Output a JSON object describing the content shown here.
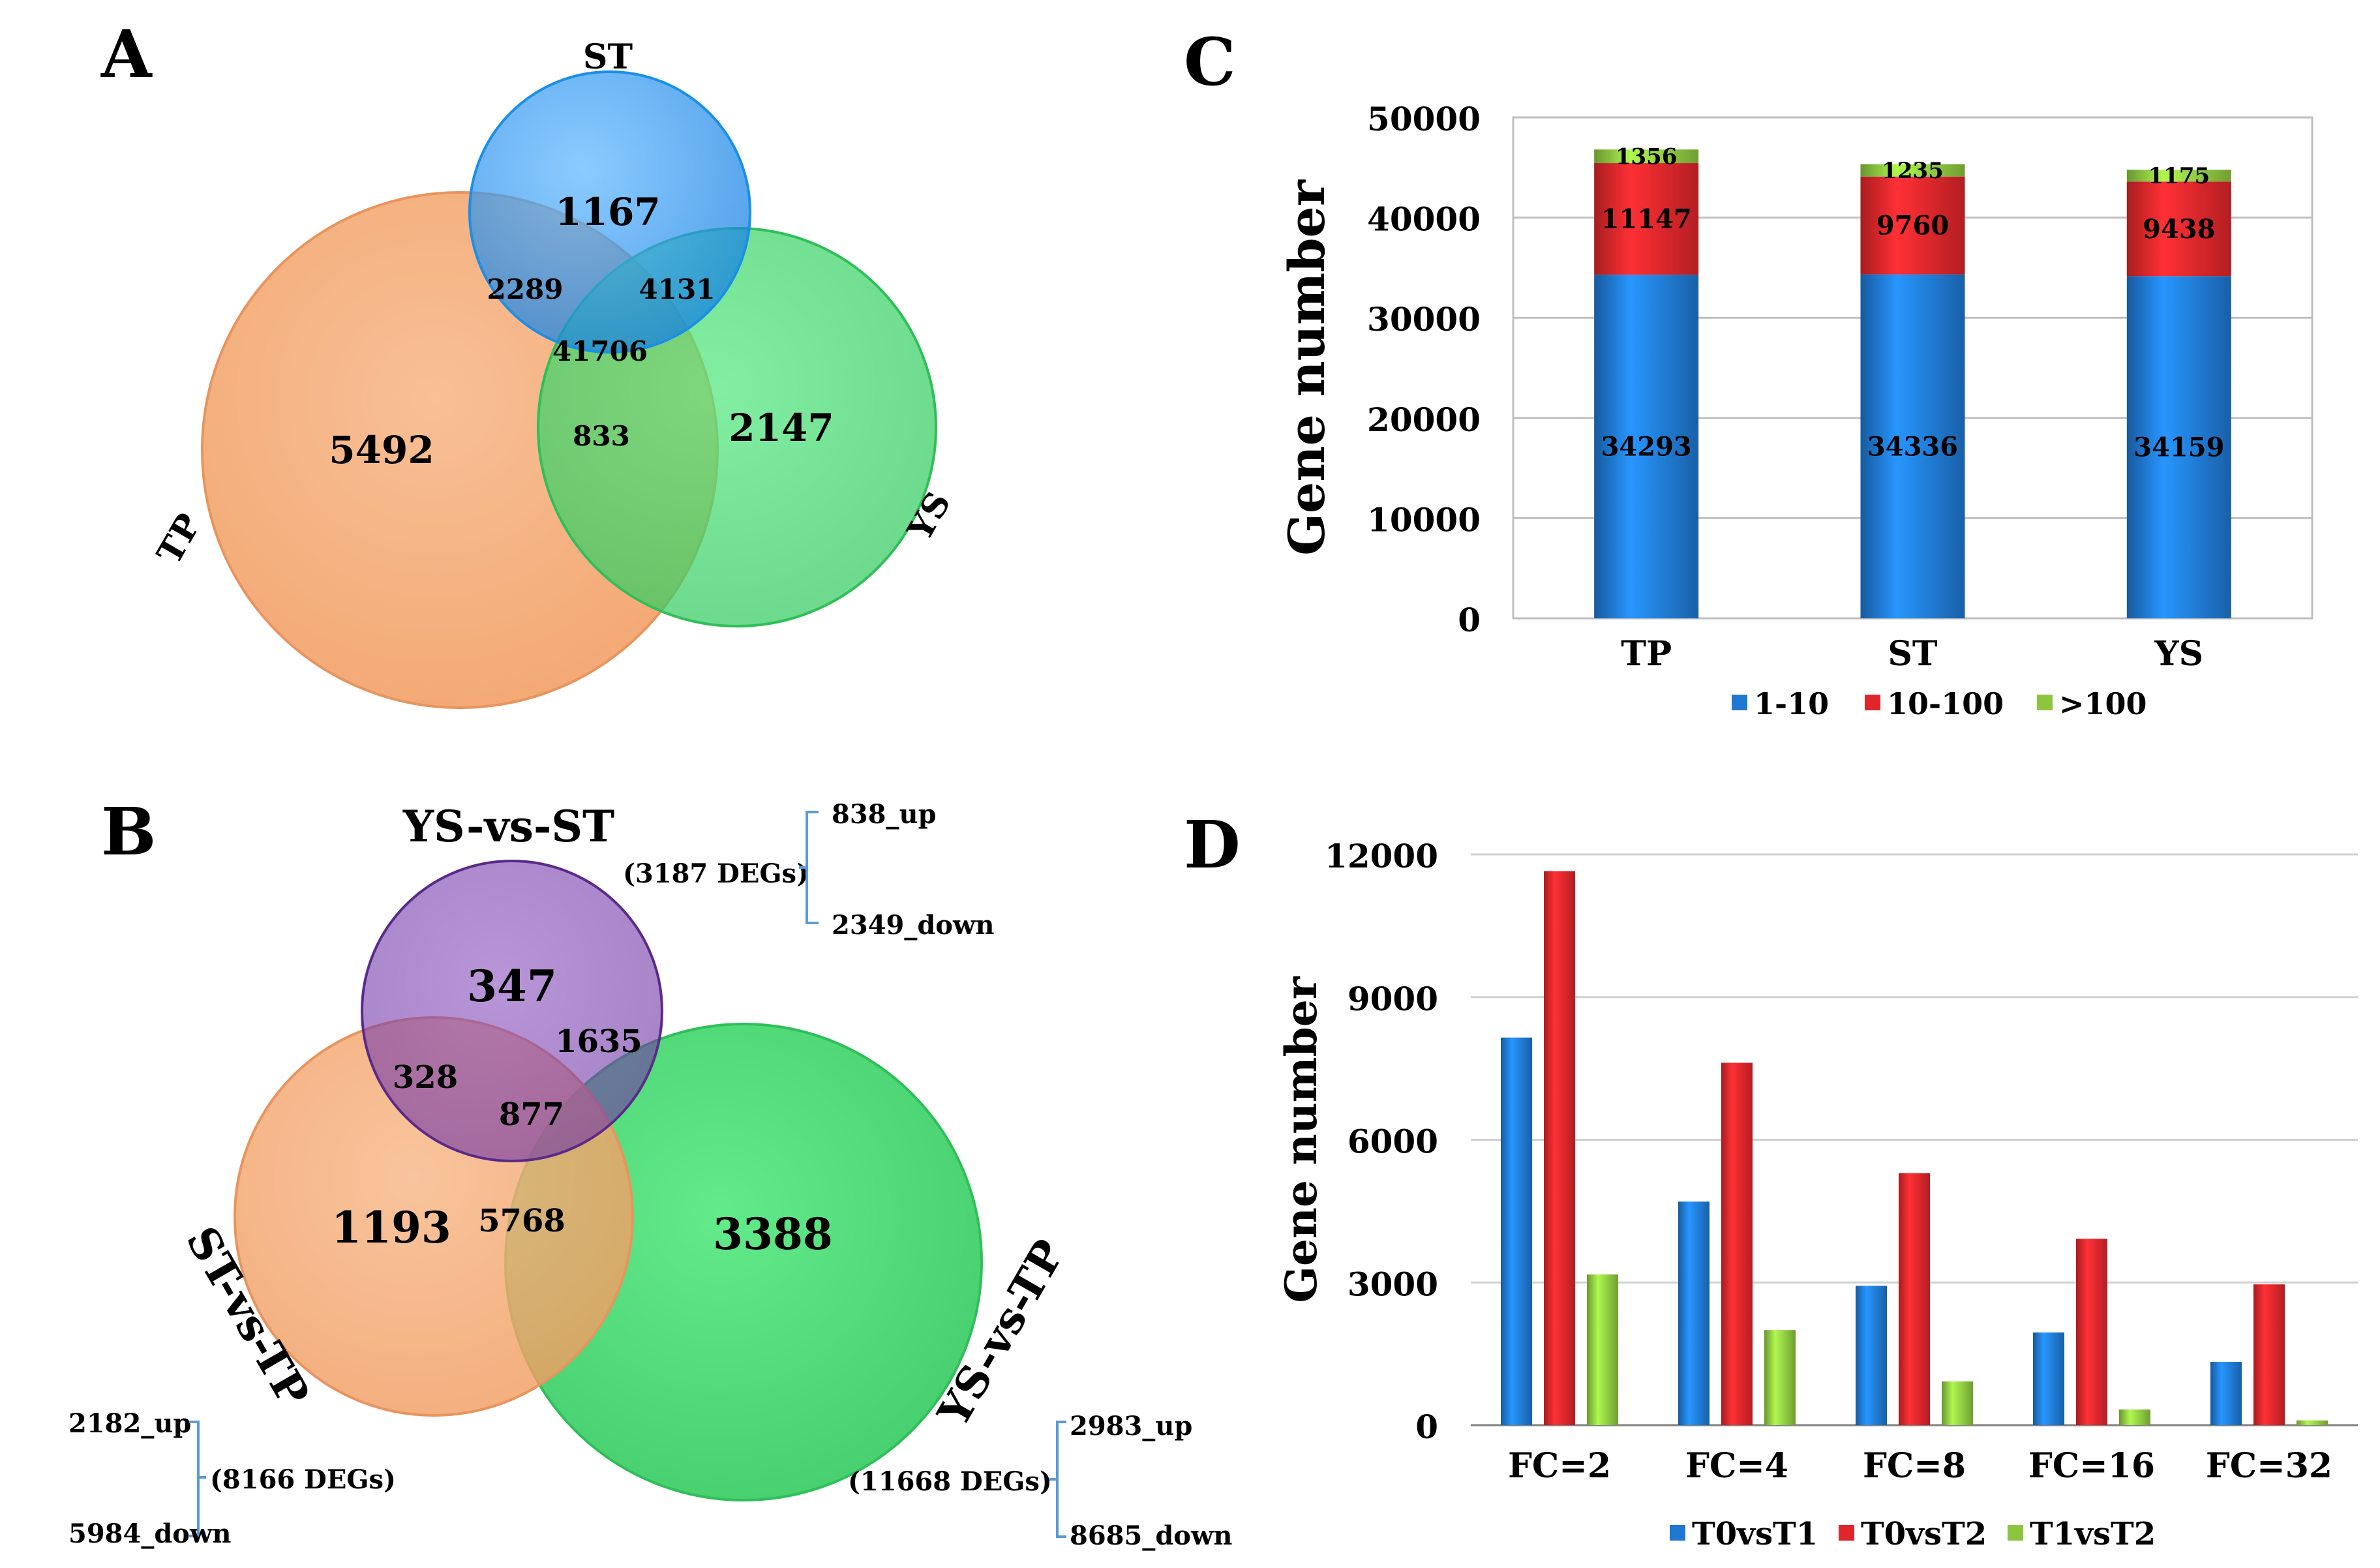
{
  "colors": {
    "blue": "#1f78d1",
    "red": "#e0262a",
    "green": "#8cc63f",
    "venn_blue": "#1e90ff",
    "venn_orange": "#f4a46a",
    "venn_green": "#3ddc68",
    "venn_purple": "#7b3fb0",
    "bracket": "#5b9bd5"
  },
  "panels": {
    "a": "A",
    "b": "B",
    "c": "C",
    "d": "D"
  },
  "venn_a": {
    "sets": [
      "ST",
      "TP",
      "YS"
    ],
    "regions": {
      "st_only": "1167",
      "tp_only": "5492",
      "ys_only": "2147",
      "st_tp": "2289",
      "st_ys": "4131",
      "tp_ys": "833",
      "all": "41706"
    }
  },
  "venn_b": {
    "sets": [
      "YS-vs-ST",
      "ST-vs-TP",
      "YS-vs-TP"
    ],
    "regions": {
      "ysst_only": "347",
      "sttp_only": "1193",
      "ystp_only": "3388",
      "ysst_sttp": "328",
      "ysst_ystp": "1635",
      "sttp_ystp": "5768",
      "all": "877"
    },
    "degs": [
      {
        "total": "(3187 DEGs)",
        "up": "838_up",
        "down": "2349_down"
      },
      {
        "total": "(8166 DEGs)",
        "up": "2182_up",
        "down": "5984_down"
      },
      {
        "total": "(11668 DEGs)",
        "up": "2983_up",
        "down": "8685_down"
      }
    ]
  },
  "chart_data": [
    {
      "type": "bar",
      "stacked": true,
      "panel": "C",
      "ylabel": "Gene number",
      "categories": [
        "TP",
        "ST",
        "YS"
      ],
      "ylim": [
        0,
        50000
      ],
      "yticks": [
        "0",
        "10000",
        "20000",
        "30000",
        "40000",
        "50000"
      ],
      "series": [
        {
          "name": "1-10",
          "values": [
            34293,
            34336,
            34159
          ],
          "color": "#1f78d1"
        },
        {
          "name": "10-100",
          "values": [
            11147,
            9760,
            9438
          ],
          "color": "#e0262a"
        },
        {
          "name": ">100",
          "values": [
            1356,
            1235,
            1175
          ],
          "color": "#8cc63f"
        }
      ],
      "legend": "bottom"
    },
    {
      "type": "bar",
      "stacked": false,
      "panel": "D",
      "ylabel": "Gene number",
      "categories": [
        "FC=2",
        "FC=4",
        "FC=8",
        "FC=16",
        "FC=32"
      ],
      "ylim": [
        0,
        12000
      ],
      "yticks": [
        "0",
        "3000",
        "6000",
        "9000",
        "12000"
      ],
      "series": [
        {
          "name": "T0vsT1",
          "values": [
            8150,
            4700,
            2930,
            1950,
            1330
          ],
          "color": "#1f78d1"
        },
        {
          "name": "T0vsT2",
          "values": [
            11650,
            7620,
            5300,
            3920,
            2960
          ],
          "color": "#e0262a"
        },
        {
          "name": "T1vsT2",
          "values": [
            3170,
            2000,
            920,
            330,
            100
          ],
          "color": "#8cc63f"
        }
      ],
      "legend": "bottom"
    }
  ]
}
